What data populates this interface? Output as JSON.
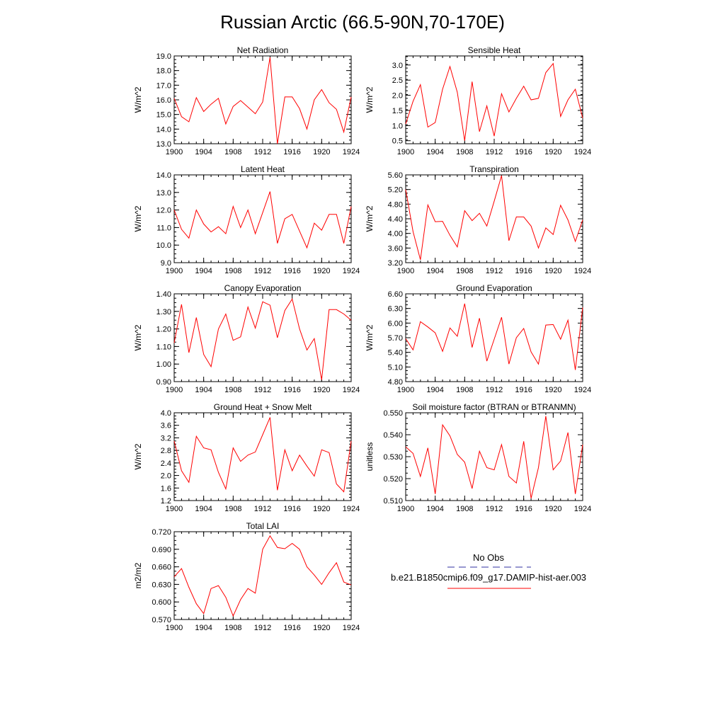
{
  "figure": {
    "title": "Russian Arctic (66.5-90N,70-170E)"
  },
  "legend": {
    "obs_label": "No Obs",
    "obs_color": "#3030a0",
    "model_label": "b.e21.B1850cmip6.f09_g17.DAMIP-hist-aer.003",
    "model_color": "#ff0000"
  },
  "chart_data": [
    {
      "type": "line",
      "title": "Net Radiation",
      "ylabel": "W/m^2",
      "xlim": [
        1900,
        1924
      ],
      "ylim": [
        13.0,
        19.0
      ],
      "x_ticks": [
        "1900",
        "1904",
        "1908",
        "1912",
        "1916",
        "1920",
        "1924"
      ],
      "y_ticks": [
        "13.0",
        "14.0",
        "15.0",
        "16.0",
        "17.0",
        "18.0",
        "19.0"
      ],
      "x": [
        1900,
        1901,
        1902,
        1903,
        1904,
        1905,
        1906,
        1907,
        1908,
        1909,
        1910,
        1911,
        1912,
        1913,
        1914,
        1915,
        1916,
        1917,
        1918,
        1919,
        1920,
        1921,
        1922,
        1923,
        1924
      ],
      "values": [
        16.1,
        14.85,
        14.5,
        16.15,
        15.2,
        15.7,
        16.1,
        14.35,
        15.55,
        15.95,
        15.5,
        15.05,
        15.85,
        18.9,
        13.0,
        16.2,
        16.2,
        15.4,
        14.0,
        16.0,
        16.7,
        15.8,
        15.35,
        13.8,
        16.2
      ],
      "color": "#ff0000"
    },
    {
      "type": "line",
      "title": "Sensible Heat",
      "ylabel": "W/m^2",
      "xlim": [
        1900,
        1924
      ],
      "ylim": [
        0.4,
        3.3
      ],
      "x_ticks": [
        "1900",
        "1904",
        "1908",
        "1912",
        "1916",
        "1920",
        "1924"
      ],
      "y_ticks": [
        "0.5",
        "1.0",
        "1.5",
        "2.0",
        "2.5",
        "3.0"
      ],
      "x": [
        1900,
        1901,
        1902,
        1903,
        1904,
        1905,
        1906,
        1907,
        1908,
        1909,
        1910,
        1911,
        1912,
        1913,
        1914,
        1915,
        1916,
        1917,
        1918,
        1919,
        1920,
        1921,
        1922,
        1923,
        1924
      ],
      "values": [
        1.05,
        1.8,
        2.35,
        0.95,
        1.1,
        2.2,
        2.95,
        2.1,
        0.5,
        2.45,
        0.8,
        1.65,
        0.65,
        2.05,
        1.45,
        1.9,
        2.3,
        1.85,
        1.9,
        2.75,
        3.05,
        1.3,
        1.85,
        2.2,
        1.25
      ],
      "color": "#ff0000"
    },
    {
      "type": "line",
      "title": "Latent Heat",
      "ylabel": "W/m^2",
      "xlim": [
        1900,
        1924
      ],
      "ylim": [
        9.0,
        14.0
      ],
      "x_ticks": [
        "1900",
        "1904",
        "1908",
        "1912",
        "1916",
        "1920",
        "1924"
      ],
      "y_ticks": [
        "9.0",
        "10.0",
        "11.0",
        "12.0",
        "13.0",
        "14.0"
      ],
      "x": [
        1900,
        1901,
        1902,
        1903,
        1904,
        1905,
        1906,
        1907,
        1908,
        1909,
        1910,
        1911,
        1912,
        1913,
        1914,
        1915,
        1916,
        1917,
        1918,
        1919,
        1920,
        1921,
        1922,
        1923,
        1924
      ],
      "values": [
        12.0,
        10.9,
        10.4,
        12.0,
        11.2,
        10.75,
        11.05,
        10.65,
        12.2,
        11.0,
        12.0,
        10.65,
        11.85,
        13.05,
        10.1,
        11.5,
        11.75,
        10.8,
        9.85,
        11.25,
        10.85,
        11.75,
        11.75,
        10.1,
        12.2
      ],
      "color": "#ff0000"
    },
    {
      "type": "line",
      "title": "Transpiration",
      "ylabel": "W/m^2",
      "xlim": [
        1900,
        1924
      ],
      "ylim": [
        3.2,
        5.6
      ],
      "x_ticks": [
        "1900",
        "1904",
        "1908",
        "1912",
        "1916",
        "1920",
        "1924"
      ],
      "y_ticks": [
        "3.20",
        "3.60",
        "4.00",
        "4.40",
        "4.80",
        "5.20",
        "5.60"
      ],
      "x": [
        1900,
        1901,
        1902,
        1903,
        1904,
        1905,
        1906,
        1907,
        1908,
        1909,
        1910,
        1911,
        1912,
        1913,
        1914,
        1915,
        1916,
        1917,
        1918,
        1919,
        1920,
        1921,
        1922,
        1923,
        1924
      ],
      "values": [
        5.2,
        4.05,
        3.28,
        4.78,
        4.32,
        4.33,
        3.95,
        3.63,
        4.62,
        4.35,
        4.55,
        4.2,
        4.88,
        5.58,
        3.8,
        4.45,
        4.45,
        4.2,
        3.6,
        4.15,
        3.97,
        4.77,
        4.37,
        3.78,
        4.37
      ],
      "color": "#ff0000"
    },
    {
      "type": "line",
      "title": "Canopy Evaporation",
      "ylabel": "W/m^2",
      "xlim": [
        1900,
        1924
      ],
      "ylim": [
        0.9,
        1.4
      ],
      "x_ticks": [
        "1900",
        "1904",
        "1908",
        "1912",
        "1916",
        "1920",
        "1924"
      ],
      "y_ticks": [
        "0.90",
        "1.00",
        "1.10",
        "1.20",
        "1.30",
        "1.40"
      ],
      "x": [
        1900,
        1901,
        1902,
        1903,
        1904,
        1905,
        1906,
        1907,
        1908,
        1909,
        1910,
        1911,
        1912,
        1913,
        1914,
        1915,
        1916,
        1917,
        1918,
        1919,
        1920,
        1921,
        1922,
        1923,
        1924
      ],
      "values": [
        1.12,
        1.34,
        1.065,
        1.265,
        1.055,
        0.985,
        1.2,
        1.285,
        1.135,
        1.155,
        1.325,
        1.205,
        1.355,
        1.335,
        1.15,
        1.305,
        1.37,
        1.2,
        1.08,
        1.145,
        0.91,
        1.31,
        1.31,
        1.285,
        1.25
      ],
      "color": "#ff0000"
    },
    {
      "type": "line",
      "title": "Ground Evaporation",
      "ylabel": "W/m^2",
      "xlim": [
        1900,
        1924
      ],
      "ylim": [
        4.8,
        6.6
      ],
      "x_ticks": [
        "1900",
        "1904",
        "1908",
        "1912",
        "1916",
        "1920",
        "1924"
      ],
      "y_ticks": [
        "4.80",
        "5.10",
        "5.40",
        "5.70",
        "6.00",
        "6.30",
        "6.60"
      ],
      "x": [
        1900,
        1901,
        1902,
        1903,
        1904,
        1905,
        1906,
        1907,
        1908,
        1909,
        1910,
        1911,
        1912,
        1913,
        1914,
        1915,
        1916,
        1917,
        1918,
        1919,
        1920,
        1921,
        1922,
        1923,
        1924
      ],
      "values": [
        5.68,
        5.45,
        6.03,
        5.92,
        5.8,
        5.42,
        5.9,
        5.73,
        6.4,
        5.5,
        6.1,
        5.22,
        5.67,
        6.12,
        5.16,
        5.7,
        5.89,
        5.41,
        5.16,
        5.96,
        5.97,
        5.67,
        6.06,
        5.04,
        6.32
      ],
      "color": "#ff0000"
    },
    {
      "type": "line",
      "title": "Ground Heat + Snow Melt",
      "ylabel": "W/m^2",
      "xlim": [
        1900,
        1924
      ],
      "ylim": [
        1.2,
        4.0
      ],
      "x_ticks": [
        "1900",
        "1904",
        "1908",
        "1912",
        "1916",
        "1920",
        "1924"
      ],
      "y_ticks": [
        "1.2",
        "1.6",
        "2.0",
        "2.4",
        "2.8",
        "3.2",
        "3.6",
        "4.0"
      ],
      "x": [
        1900,
        1901,
        1902,
        1903,
        1904,
        1905,
        1906,
        1907,
        1908,
        1909,
        1910,
        1911,
        1912,
        1913,
        1914,
        1915,
        1916,
        1917,
        1918,
        1919,
        1920,
        1921,
        1922,
        1923,
        1924
      ],
      "values": [
        3.1,
        2.15,
        1.78,
        3.25,
        2.88,
        2.82,
        2.1,
        1.57,
        2.88,
        2.45,
        2.65,
        2.75,
        3.3,
        3.85,
        1.53,
        2.82,
        2.15,
        2.65,
        2.3,
        1.98,
        2.82,
        2.73,
        1.73,
        1.48,
        3.1
      ],
      "color": "#ff0000"
    },
    {
      "type": "line",
      "title": "Soil moisture factor (BTRAN or BTRANMN)",
      "ylabel": "unitless",
      "xlim": [
        1900,
        1924
      ],
      "ylim": [
        0.51,
        0.55
      ],
      "x_ticks": [
        "1900",
        "1904",
        "1908",
        "1912",
        "1916",
        "1920",
        "1924"
      ],
      "y_ticks": [
        "0.510",
        "0.520",
        "0.530",
        "0.540",
        "0.550"
      ],
      "x": [
        1900,
        1901,
        1902,
        1903,
        1904,
        1905,
        1906,
        1907,
        1908,
        1909,
        1910,
        1911,
        1912,
        1913,
        1914,
        1915,
        1916,
        1917,
        1918,
        1919,
        1920,
        1921,
        1922,
        1923,
        1924
      ],
      "values": [
        0.5345,
        0.5315,
        0.521,
        0.534,
        0.513,
        0.5445,
        0.5395,
        0.531,
        0.5275,
        0.5155,
        0.5325,
        0.525,
        0.524,
        0.5355,
        0.521,
        0.518,
        0.537,
        0.511,
        0.525,
        0.5485,
        0.524,
        0.528,
        0.541,
        0.513,
        0.5355
      ],
      "color": "#ff0000"
    },
    {
      "type": "line",
      "title": "Total LAI",
      "ylabel": "m2/m2",
      "xlim": [
        1900,
        1924
      ],
      "ylim": [
        0.57,
        0.72
      ],
      "x_ticks": [
        "1900",
        "1904",
        "1908",
        "1912",
        "1916",
        "1920",
        "1924"
      ],
      "y_ticks": [
        "0.570",
        "0.600",
        "0.630",
        "0.660",
        "0.690",
        "0.720"
      ],
      "x": [
        1900,
        1901,
        1902,
        1903,
        1904,
        1905,
        1906,
        1907,
        1908,
        1909,
        1910,
        1911,
        1912,
        1913,
        1914,
        1915,
        1916,
        1917,
        1918,
        1919,
        1920,
        1921,
        1922,
        1923,
        1924
      ],
      "values": [
        0.643,
        0.657,
        0.625,
        0.597,
        0.58,
        0.623,
        0.628,
        0.608,
        0.576,
        0.604,
        0.623,
        0.615,
        0.69,
        0.713,
        0.693,
        0.691,
        0.7,
        0.69,
        0.66,
        0.646,
        0.63,
        0.65,
        0.667,
        0.634,
        0.629
      ],
      "color": "#ff0000"
    }
  ]
}
